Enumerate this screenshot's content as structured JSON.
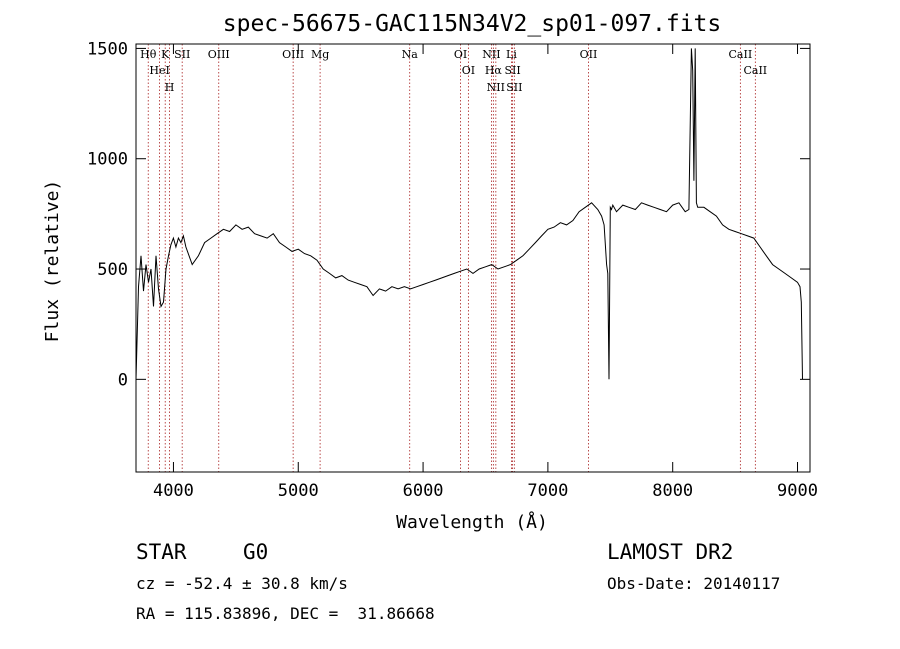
{
  "chart_data": {
    "type": "line",
    "title": "spec-56675-GAC115N34V2_sp01-097.fits",
    "xlabel": "Wavelength (Å)",
    "ylabel": "Flux (relative)",
    "xlim": [
      3700,
      9100
    ],
    "ylim": [
      -420,
      1520
    ],
    "xticks": [
      4000,
      5000,
      6000,
      7000,
      8000,
      9000
    ],
    "yticks": [
      0,
      500,
      1000,
      1500
    ],
    "grid": false,
    "line_color": "#000000",
    "marker_color": "#aa2222",
    "series": [
      {
        "x": [
          3700,
          3720,
          3740,
          3760,
          3780,
          3800,
          3820,
          3840,
          3860,
          3880,
          3900,
          3920,
          3940,
          3960,
          3980,
          4000,
          4020,
          4040,
          4060,
          4080,
          4100,
          4150,
          4200,
          4250,
          4300,
          4350,
          4400,
          4450,
          4500,
          4550,
          4600,
          4650,
          4700,
          4750,
          4800,
          4850,
          4900,
          4950,
          5000,
          5050,
          5100,
          5150,
          5200,
          5250,
          5300,
          5350,
          5400,
          5450,
          5500,
          5550,
          5600,
          5650,
          5700,
          5750,
          5800,
          5850,
          5900,
          5950,
          6000,
          6050,
          6100,
          6150,
          6200,
          6250,
          6300,
          6350,
          6400,
          6450,
          6500,
          6550,
          6600,
          6650,
          6700,
          6750,
          6800,
          6850,
          6900,
          6950,
          7000,
          7050,
          7100,
          7150,
          7200,
          7250,
          7300,
          7350,
          7400,
          7430,
          7450,
          7470,
          7480,
          7490,
          7500,
          7510,
          7520,
          7550,
          7600,
          7650,
          7700,
          7750,
          7800,
          7850,
          7900,
          7950,
          8000,
          8050,
          8100,
          8130,
          8150,
          8160,
          8170,
          8180,
          8190,
          8200,
          8250,
          8300,
          8350,
          8400,
          8450,
          8500,
          8550,
          8600,
          8650,
          8700,
          8750,
          8800,
          8850,
          8900,
          8950,
          9000,
          9020,
          9030,
          9040
        ],
        "y": [
          0,
          420,
          560,
          400,
          520,
          440,
          500,
          330,
          560,
          410,
          330,
          350,
          500,
          560,
          610,
          640,
          600,
          640,
          620,
          650,
          600,
          520,
          560,
          620,
          640,
          660,
          680,
          670,
          700,
          680,
          690,
          660,
          650,
          640,
          660,
          620,
          600,
          580,
          590,
          570,
          560,
          540,
          500,
          480,
          460,
          470,
          450,
          440,
          430,
          420,
          380,
          410,
          400,
          420,
          410,
          420,
          410,
          420,
          430,
          440,
          450,
          460,
          470,
          480,
          490,
          500,
          480,
          500,
          510,
          520,
          500,
          510,
          520,
          540,
          560,
          590,
          620,
          650,
          680,
          690,
          710,
          700,
          720,
          760,
          780,
          800,
          770,
          740,
          700,
          520,
          480,
          0,
          780,
          770,
          790,
          760,
          790,
          780,
          770,
          800,
          790,
          780,
          770,
          760,
          790,
          800,
          760,
          770,
          1500,
          1400,
          900,
          1500,
          800,
          780,
          780,
          760,
          740,
          700,
          680,
          670,
          660,
          650,
          640,
          600,
          560,
          520,
          500,
          480,
          460,
          440,
          420,
          350,
          0
        ]
      }
    ],
    "lines": [
      {
        "label": "Hθ",
        "x": 3798
      },
      {
        "label": "HeI",
        "x": 3889
      },
      {
        "label": "K",
        "x": 3934
      },
      {
        "label": "H",
        "x": 3969
      },
      {
        "label": "SII",
        "x": 4070
      },
      {
        "label": "OIII",
        "x": 4363
      },
      {
        "label": "OIII",
        "x": 4959
      },
      {
        "label": "Mg",
        "x": 5175
      },
      {
        "label": "Na",
        "x": 5893
      },
      {
        "label": "OI",
        "x": 6300
      },
      {
        "label": "OI",
        "x": 6363
      },
      {
        "label": "NII",
        "x": 6548
      },
      {
        "label": "Hα",
        "x": 6563
      },
      {
        "label": "NII",
        "x": 6583
      },
      {
        "label": "Li",
        "x": 6708
      },
      {
        "label": "SII",
        "x": 6717
      },
      {
        "label": "SII",
        "x": 6731
      },
      {
        "label": "OII",
        "x": 7325
      },
      {
        "label": "CaII",
        "x": 8542
      },
      {
        "label": "CaII",
        "x": 8662
      }
    ]
  },
  "info": {
    "class_label": "STAR",
    "subclass_label": "G0",
    "survey": "LAMOST DR2",
    "cz": "cz = -52.4 ± 30.8 km/s",
    "obs_date": "Obs-Date: 20140117",
    "coords": "RA = 115.83896, DEC =  31.86668"
  }
}
